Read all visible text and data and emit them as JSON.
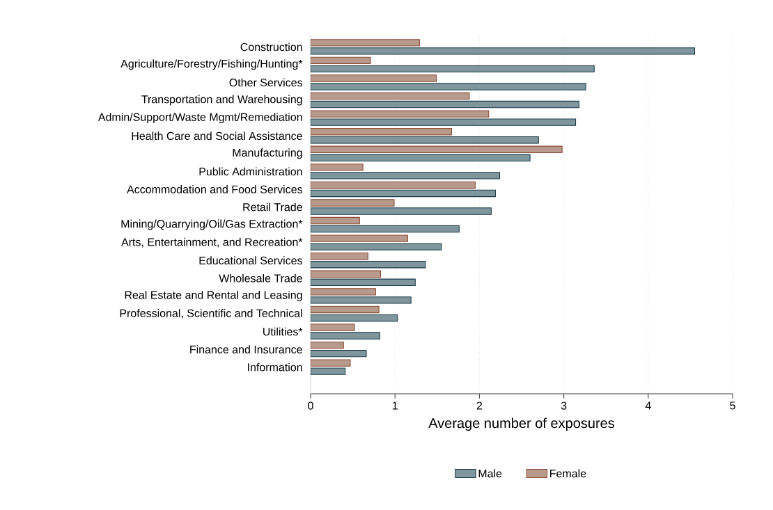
{
  "chart_data": {
    "type": "bar",
    "orientation": "horizontal",
    "xlabel": "Average number of exposures",
    "categories": [
      "Construction",
      "Agriculture/Forestry/Fishing/Hunting*",
      "Other Services",
      "Transportation and Warehousing",
      "Admin/Support/Waste Mgmt/Remediation",
      "Health Care and Social Assistance",
      "Manufacturing",
      "Public Administration",
      "Accommodation and Food Services",
      "Retail Trade",
      "Mining/Quarrying/Oil/Gas Extraction*",
      "Arts, Entertainment, and Recreation*",
      "Educational Services",
      "Wholesale Trade",
      "Real Estate and Rental and Leasing",
      "Professional, Scientific and Technical",
      "Utilities*",
      "Finance and Insurance",
      "Information"
    ],
    "series": [
      {
        "name": "Male",
        "color": "#7f979c",
        "values": [
          4.55,
          3.36,
          3.26,
          3.18,
          3.14,
          2.7,
          2.6,
          2.24,
          2.19,
          2.14,
          1.76,
          1.55,
          1.36,
          1.24,
          1.19,
          1.03,
          0.82,
          0.66,
          0.41
        ]
      },
      {
        "name": "Female",
        "color": "#b89a8c",
        "values": [
          1.29,
          0.71,
          1.49,
          1.88,
          2.11,
          1.67,
          2.98,
          0.62,
          1.95,
          0.99,
          0.58,
          1.15,
          0.68,
          0.83,
          0.77,
          0.81,
          0.52,
          0.39,
          0.47
        ]
      }
    ],
    "xlim": [
      0,
      5
    ],
    "xticks": [
      0,
      1,
      2,
      3,
      4,
      5
    ],
    "grid": "x",
    "legend": "bottom"
  }
}
